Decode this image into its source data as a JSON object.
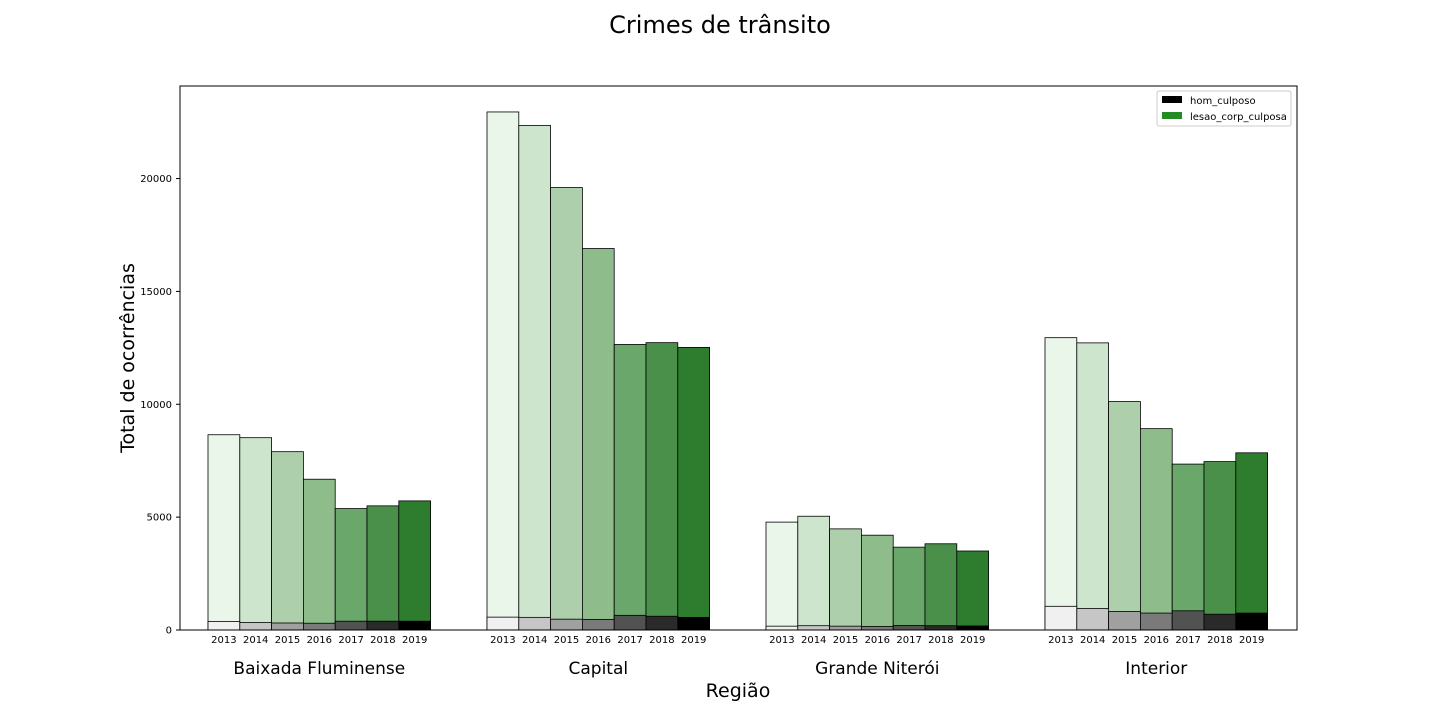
{
  "chart_data": {
    "type": "bar",
    "title": "Crimes de trânsito",
    "xlabel": "Região",
    "ylabel": "Total de ocorrências",
    "ylim": [
      0,
      24100
    ],
    "yticks": [
      0,
      5000,
      10000,
      15000,
      20000
    ],
    "grid": false,
    "legend_position": "top-right",
    "years": [
      "2013",
      "2014",
      "2015",
      "2016",
      "2017",
      "2018",
      "2019"
    ],
    "categories": [
      "Baixada Fluminense",
      "Capital",
      "Grande Niterói",
      "Interior"
    ],
    "series": [
      {
        "name": "hom_culposo",
        "color": "#000000",
        "values": [
          [
            380,
            330,
            310,
            300,
            390,
            390,
            390
          ],
          [
            570,
            560,
            480,
            470,
            650,
            610,
            560
          ],
          [
            170,
            190,
            170,
            160,
            200,
            190,
            180
          ],
          [
            1050,
            950,
            820,
            750,
            850,
            700,
            750
          ]
        ]
      },
      {
        "name": "lesao_corp_culposa",
        "color": "#228b22",
        "values": [
          [
            8650,
            8520,
            7900,
            6680,
            5380,
            5500,
            5720
          ],
          [
            22950,
            22350,
            19600,
            16900,
            12650,
            12730,
            12520
          ],
          [
            4780,
            5040,
            4480,
            4200,
            3670,
            3820,
            3500
          ],
          [
            12950,
            12720,
            10120,
            8920,
            7350,
            7460,
            7850
          ]
        ]
      }
    ],
    "shade_colors": {
      "hom_culposo": [
        "#f0f0f0",
        "#c6c6c6",
        "#a0a0a0",
        "#7a7a7a",
        "#525252",
        "#2a2a2a",
        "#000000"
      ],
      "lesao_corp_culposa": [
        "#ebf6ea",
        "#cde5cc",
        "#adcfab",
        "#8ebd8b",
        "#6aa76a",
        "#4a904a",
        "#2e7d2e"
      ]
    }
  }
}
